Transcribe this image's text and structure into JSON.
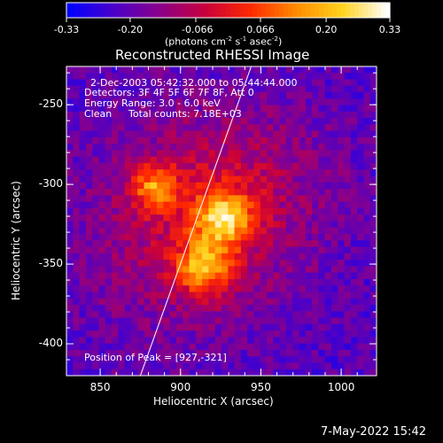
{
  "chart_data": {
    "type": "heatmap",
    "title": "Reconstructed RHESSI Image",
    "xlabel": "Heliocentric X (arcsec)",
    "ylabel": "Heliocentric Y (arcsec)",
    "xlim": [
      829,
      1022
    ],
    "ylim": [
      -420,
      -226
    ],
    "x_ticks": [
      850,
      900,
      950,
      1000
    ],
    "y_ticks": [
      -250,
      -300,
      -350,
      -400
    ],
    "colorbar": {
      "vmin": -0.33,
      "vmax": 0.33,
      "ticks": [
        "-0.33",
        "-0.20",
        "-0.066",
        "0.066",
        "0.20",
        "0.33"
      ],
      "units_prefix": "(photons cm",
      "units_sup1": "-2",
      "units_mid": " s",
      "units_sup2": "-1",
      "units_mid2": " asec",
      "units_sup3": "-2",
      "units_suffix": ")",
      "colormap": [
        "#0000ff",
        "#4b00c8",
        "#8a008a",
        "#c8003c",
        "#ff2a00",
        "#ff8c00",
        "#ffd21e",
        "#ffffff"
      ]
    },
    "sources": [
      {
        "x": 927,
        "y": -321,
        "amplitude": 0.33,
        "sigma": 12
      },
      {
        "x": 914,
        "y": -352,
        "amplitude": 0.3,
        "sigma": 12
      },
      {
        "x": 884,
        "y": -302,
        "amplitude": 0.27,
        "sigma": 10
      },
      {
        "x": 900,
        "y": -330,
        "amplitude": 0.12,
        "sigma": 45
      },
      {
        "x": 940,
        "y": -300,
        "amplitude": 0.1,
        "sigma": 40
      }
    ],
    "limb_line": [
      [
        875,
        -420
      ],
      [
        944,
        -226
      ]
    ],
    "info": {
      "time": "2-Dec-2003 05:42:32.000 to 05:44:44.000",
      "detectors": "Detectors: 3F 4F 5F 6F 7F 8F, Att 0",
      "energy": "Energy Range: 3.0 - 6.0 keV",
      "method": "Clean",
      "counts": "Total counts: 7.18E+03",
      "peak": "Position of Peak = [927,-321]"
    }
  },
  "timestamp": "7-May-2022 15:42"
}
